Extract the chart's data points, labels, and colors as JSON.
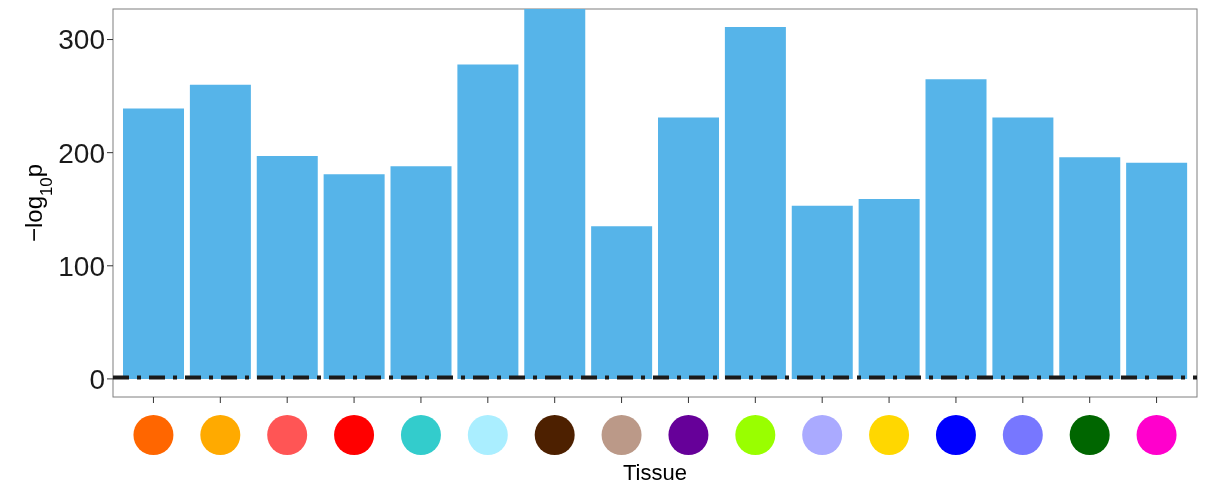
{
  "chart_data": {
    "type": "bar",
    "xlabel": "Tissue",
    "ylabel": "−log$_{10}$p",
    "categories": [
      null,
      null,
      null,
      null,
      null,
      null,
      null,
      null,
      null,
      null,
      null,
      null,
      null,
      null,
      null,
      null
    ],
    "values": [
      239,
      260,
      197,
      181,
      188,
      278,
      327,
      135,
      231,
      311,
      153,
      159,
      265,
      231,
      196,
      191
    ],
    "color": "#56b4e9",
    "ylim": [
      -16,
      327
    ],
    "yticks": [
      0,
      100,
      200,
      300
    ],
    "ref_lines": [
      {
        "axis": "y",
        "value": 1.3,
        "color": "#1a1a1a",
        "line_style": "dashdot"
      }
    ],
    "grid": false
  }
}
